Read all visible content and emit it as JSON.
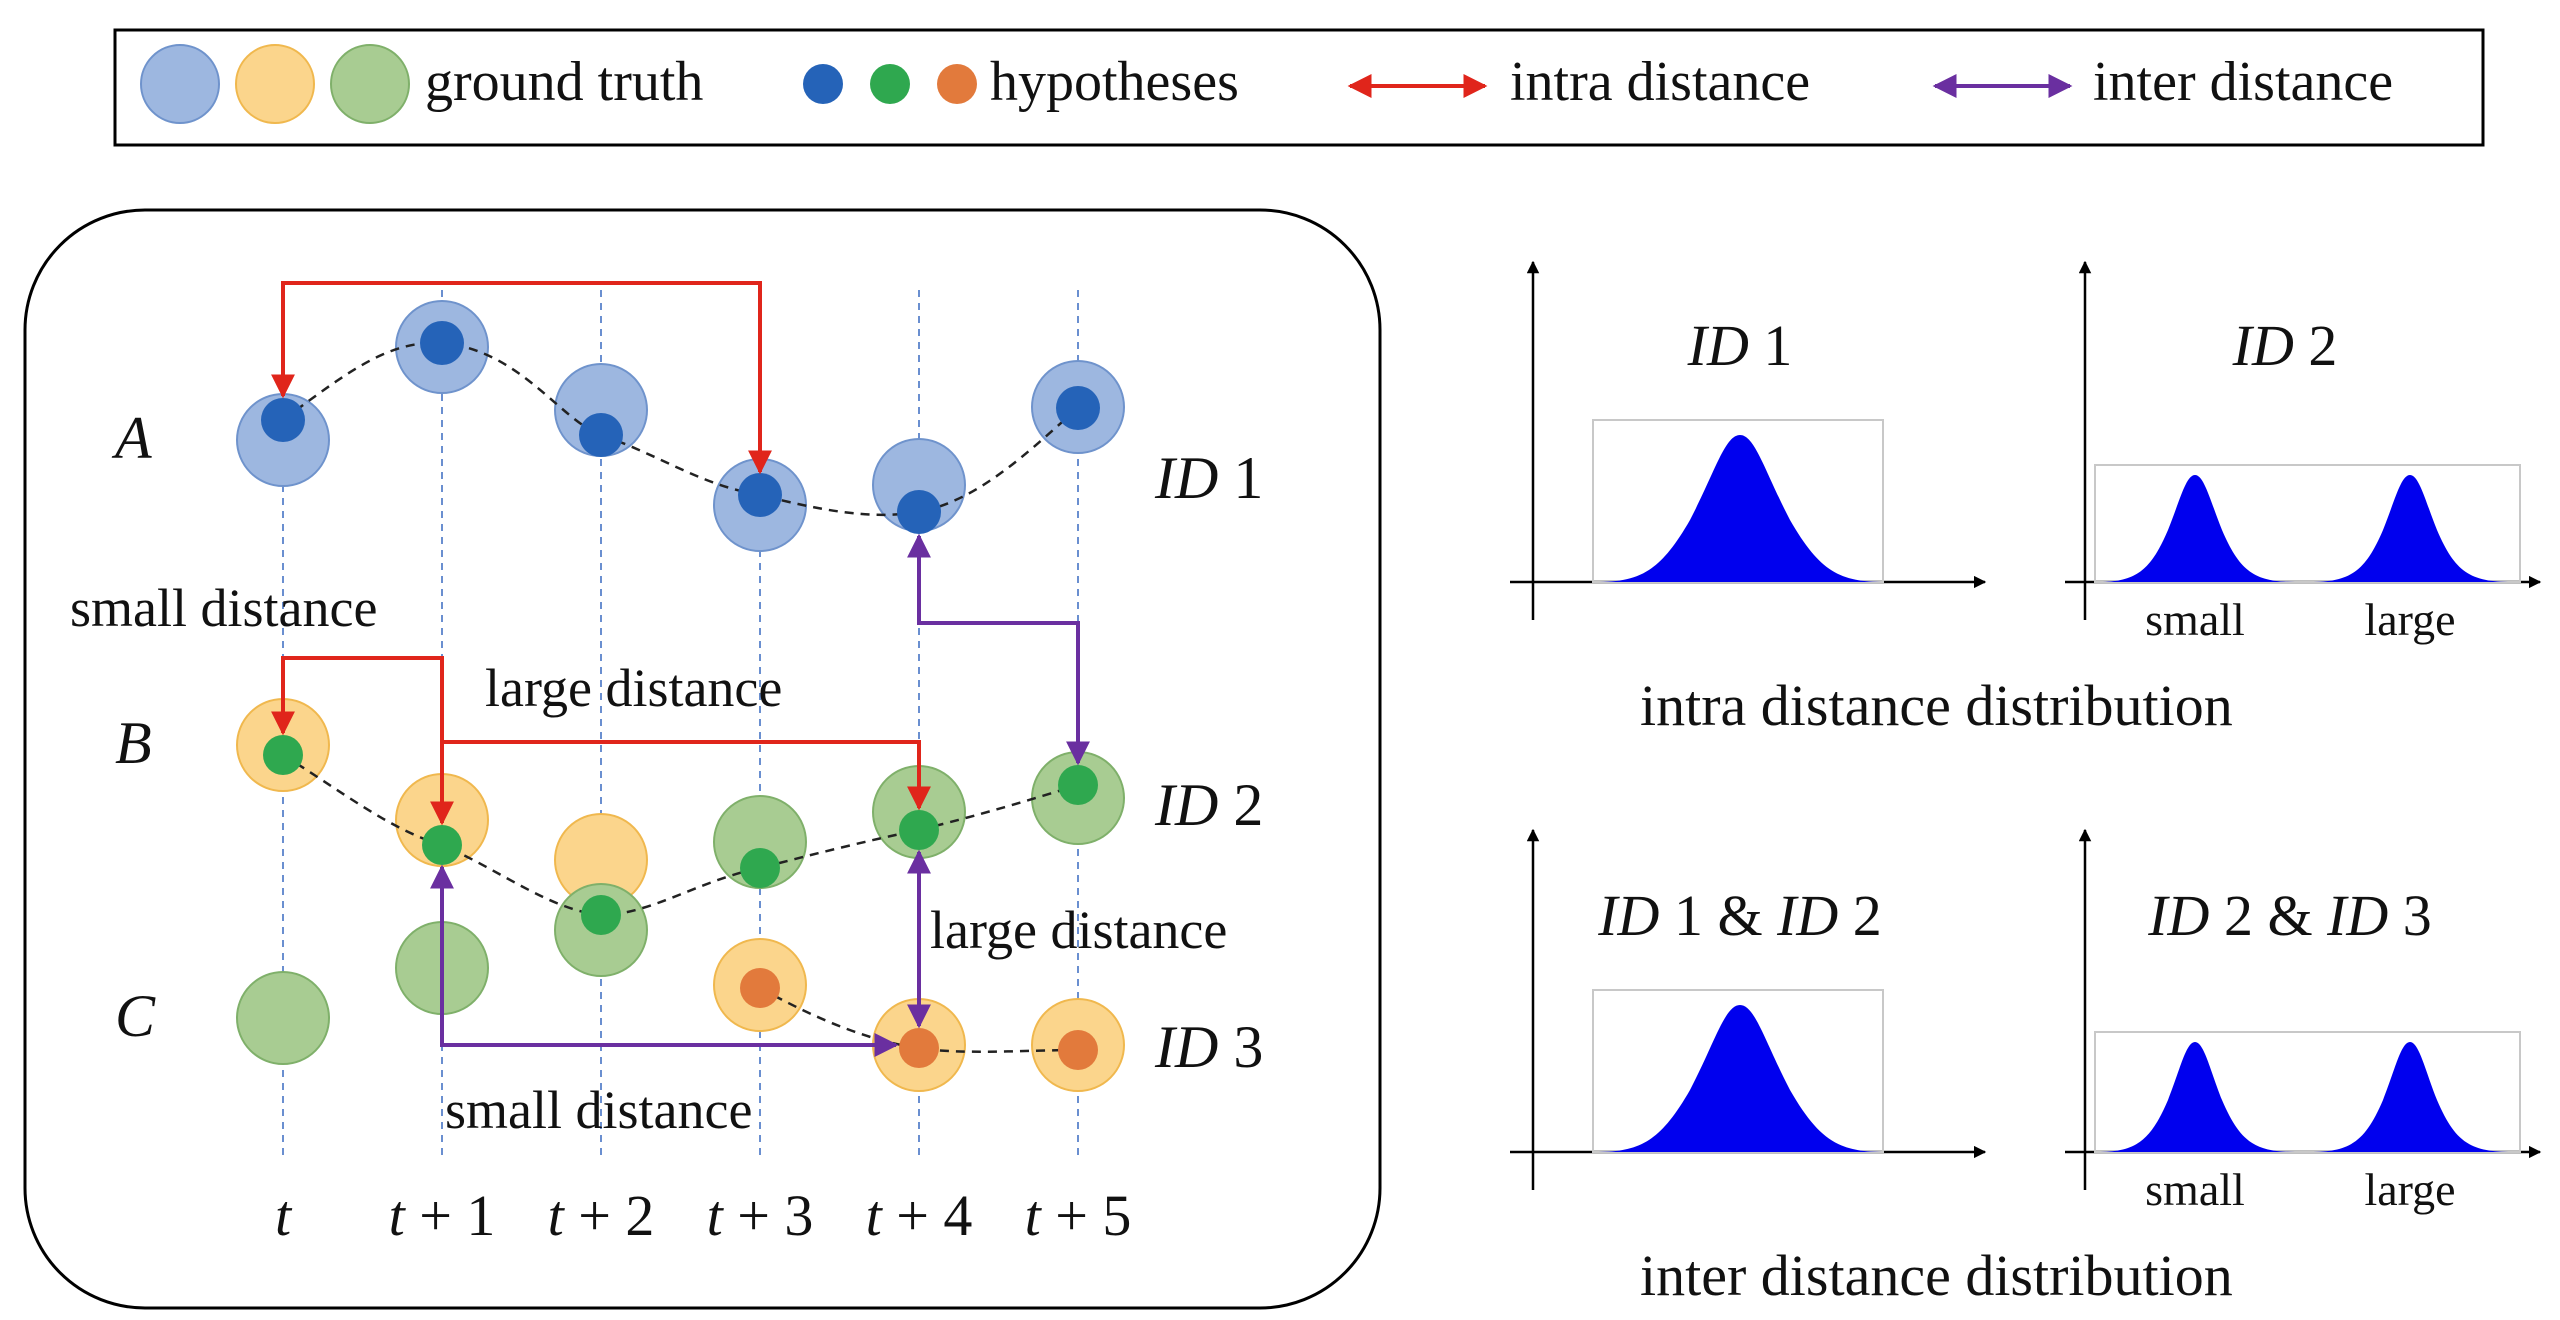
{
  "legend": {
    "ground_truth_label": "ground truth",
    "hypotheses_label": "hypotheses",
    "intra_label": "intra distance",
    "inter_label": "inter distance"
  },
  "colors": {
    "gt_blue": "#9db7e0",
    "gt_blue_edge": "#6f93cc",
    "gt_yellow": "#fbd58c",
    "gt_yellow_edge": "#f0b84e",
    "gt_green": "#a8cc92",
    "gt_green_edge": "#7fb06a",
    "hyp_blue": "#2563b8",
    "hyp_green": "#2fa84f",
    "hyp_orange": "#e27a3c",
    "intra_arrow": "#e0251b",
    "inter_arrow": "#6a2fa0",
    "distribution_fill": "#0000ee"
  },
  "rows": {
    "a": "A",
    "b": "B",
    "c": "C"
  },
  "ids": {
    "id1": "1",
    "id2": "2",
    "id3": "3",
    "id_prefix": "ID"
  },
  "time_axis": {
    "t": "t",
    "offsets": [
      "1",
      "2",
      "3",
      "4",
      "5"
    ],
    "plus": "+"
  },
  "annotations": {
    "small_distance_top": "small distance",
    "large_distance_mid": "large distance",
    "large_distance_right": "large distance",
    "small_distance_bottom": "small distance"
  },
  "plots": {
    "intra": {
      "caption": "intra distance distribution",
      "left_title_num": "1",
      "right_title_num": "2",
      "small_label": "small",
      "large_label": "large"
    },
    "inter": {
      "caption": "inter distance distribution",
      "left_title_a": "1",
      "left_title_b": "2",
      "right_title_a": "2",
      "right_title_b": "3",
      "amp": "&",
      "small_label": "small",
      "large_label": "large"
    }
  }
}
